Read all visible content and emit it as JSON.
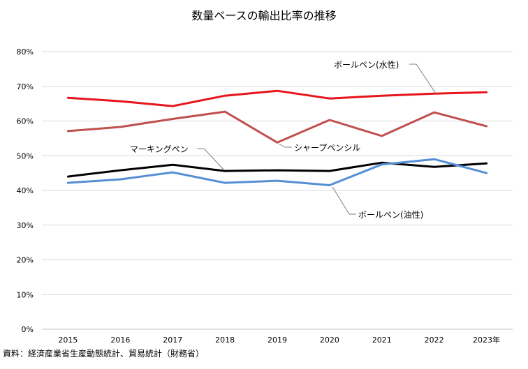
{
  "chart_data": {
    "type": "line",
    "title": "数量ベースの輸出比率の推移",
    "categories": [
      "2015",
      "2016",
      "2017",
      "2018",
      "2019",
      "2020",
      "2021",
      "2022",
      "2023年"
    ],
    "y_ticks": [
      "0%",
      "10%",
      "20%",
      "30%",
      "40%",
      "50%",
      "60%",
      "70%",
      "80%"
    ],
    "ylim": [
      0,
      80
    ],
    "xlabel": "",
    "ylabel": "",
    "grid": "horizontal",
    "series": [
      {
        "name": "ボールペン(水性)",
        "color": "#e8141b",
        "values": [
          66.7,
          65.7,
          64.3,
          67.3,
          68.7,
          66.5,
          67.3,
          67.9,
          68.3
        ]
      },
      {
        "name": "シャープペンシル",
        "color": "#c0504d",
        "values": [
          57.1,
          58.3,
          60.6,
          62.7,
          53.8,
          60.3,
          55.7,
          62.5,
          58.5
        ]
      },
      {
        "name": "マーキングペン",
        "color": "#000000",
        "values": [
          44.0,
          45.8,
          47.4,
          45.6,
          45.8,
          45.6,
          48.0,
          46.8,
          47.8
        ]
      },
      {
        "name": "ボールペン(油性)",
        "color": "#558ed5",
        "values": [
          42.2,
          43.2,
          45.2,
          42.2,
          42.8,
          41.5,
          47.5,
          49.0,
          45.0
        ]
      }
    ]
  },
  "source": "資料：経済産業省生産動態統計、貿易統計（財務省）"
}
